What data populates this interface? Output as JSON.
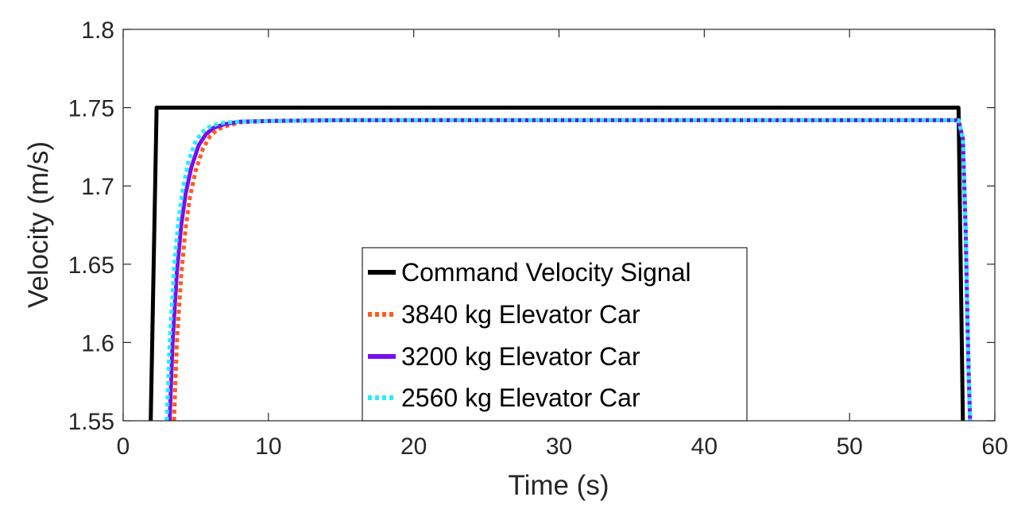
{
  "chart_data": {
    "type": "line",
    "title": "",
    "xlabel": "Time (s)",
    "ylabel": "Velocity (m/s)",
    "xlim": [
      0,
      60
    ],
    "ylim": [
      1.55,
      1.8
    ],
    "xticks": [
      0,
      10,
      20,
      30,
      40,
      50,
      60
    ],
    "yticks": [
      1.55,
      1.6,
      1.65,
      1.7,
      1.75,
      1.8
    ],
    "ytick_labels": [
      "1.55",
      "1.6",
      "1.65",
      "1.7",
      "1.75",
      "1.8"
    ],
    "grid": false,
    "legend_position": "bottom-center",
    "series": [
      {
        "name": "Command Velocity Signal",
        "color": "#000000",
        "style": "solid",
        "x": [
          1.9,
          2.3,
          57.5,
          57.8
        ],
        "y": [
          1.55,
          1.75,
          1.75,
          1.55
        ]
      },
      {
        "name": "3840 kg Elevator Car",
        "color": "#ff5a1f",
        "style": "dotted",
        "x": [
          3.5,
          3.7,
          4.0,
          4.3,
          4.6,
          5.0,
          5.5,
          6.0,
          6.5,
          7.0,
          8.0,
          9.0,
          10.0,
          15.0,
          57.5,
          57.8,
          58.0,
          58.1,
          58.2,
          58.3
        ],
        "y": [
          1.55,
          1.6,
          1.643,
          1.673,
          1.693,
          1.71,
          1.724,
          1.732,
          1.736,
          1.738,
          1.7405,
          1.741,
          1.7415,
          1.742,
          1.742,
          1.73,
          1.67,
          1.62,
          1.58,
          1.55
        ]
      },
      {
        "name": "3200 kg Elevator Car",
        "color": "#7a0df0",
        "style": "solid",
        "x": [
          3.2,
          3.4,
          3.7,
          4.0,
          4.3,
          4.7,
          5.2,
          5.7,
          6.2,
          7.0,
          8.0,
          9.0,
          10.0,
          15.0,
          57.5,
          57.8,
          58.0,
          58.1,
          58.2,
          58.3
        ],
        "y": [
          1.55,
          1.6,
          1.645,
          1.675,
          1.695,
          1.712,
          1.726,
          1.733,
          1.737,
          1.7395,
          1.741,
          1.7413,
          1.7415,
          1.742,
          1.742,
          1.73,
          1.67,
          1.62,
          1.58,
          1.55
        ]
      },
      {
        "name": "2560 kg Elevator Car",
        "color": "#22eeff",
        "style": "dotted",
        "x": [
          3.0,
          3.2,
          3.5,
          3.8,
          4.1,
          4.5,
          5.0,
          5.5,
          6.0,
          6.5,
          7.0,
          8.0,
          10.0,
          15.0,
          57.5,
          57.8,
          58.0,
          58.1,
          58.2,
          58.3
        ],
        "y": [
          1.55,
          1.6,
          1.648,
          1.678,
          1.698,
          1.716,
          1.729,
          1.735,
          1.738,
          1.7395,
          1.7405,
          1.741,
          1.7415,
          1.742,
          1.742,
          1.73,
          1.67,
          1.62,
          1.58,
          1.55
        ]
      }
    ]
  }
}
